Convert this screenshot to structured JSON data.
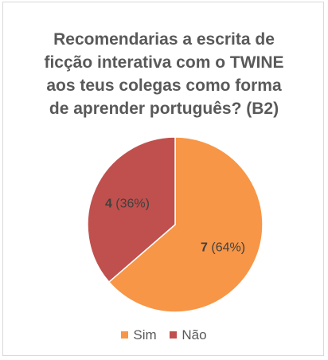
{
  "chart_data": {
    "type": "pie",
    "title_lines": [
      "Recomendarias a escrita de",
      "ficção interativa com o TWINE",
      "aos teus colegas como forma",
      "de aprender português? (B2)"
    ],
    "categories": [
      "Sim",
      "Não"
    ],
    "values": [
      7,
      4
    ],
    "percent_labels": [
      "64%",
      "36%"
    ],
    "data_labels": [
      "7 (64%)",
      "4 (36%)"
    ],
    "colors": [
      "#F79646",
      "#C0504D"
    ],
    "legend_position": "bottom"
  }
}
